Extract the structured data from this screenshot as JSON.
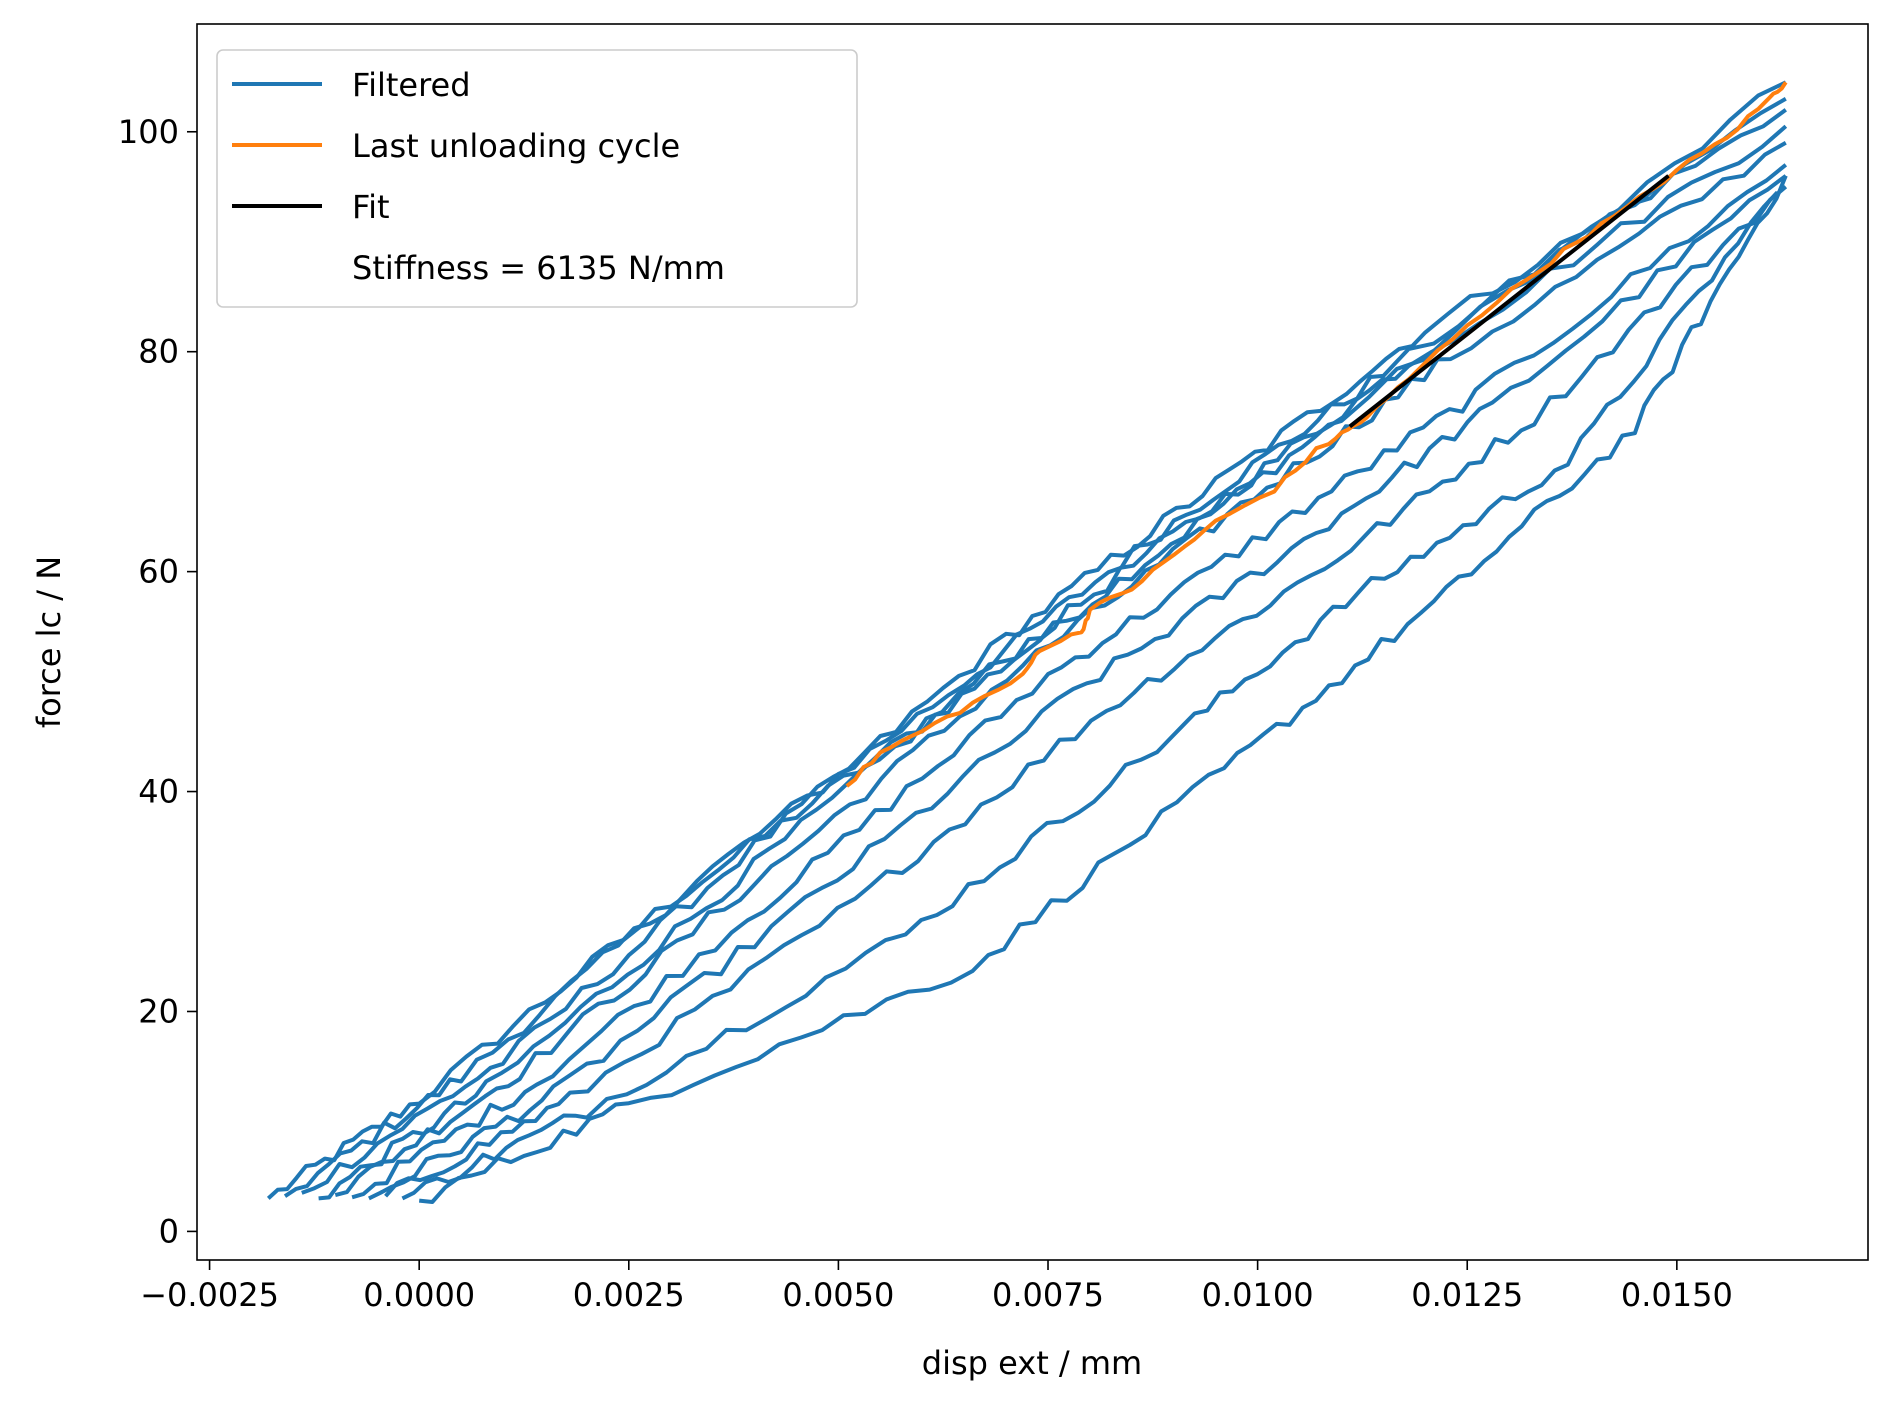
{
  "chart_data": {
    "type": "line",
    "xlabel": "disp ext / mm",
    "ylabel": "force lc / N",
    "xlim": [
      -0.00265,
      0.01728
    ],
    "ylim": [
      -2.6,
      109.8
    ],
    "x_ticks": [
      -0.0025,
      0.0,
      0.0025,
      0.005,
      0.0075,
      0.01,
      0.0125,
      0.015
    ],
    "x_tick_labels": [
      "−0.0025",
      "0.0000",
      "0.0025",
      "0.0050",
      "0.0075",
      "0.0100",
      "0.0125",
      "0.0150"
    ],
    "y_ticks": [
      0,
      20,
      40,
      60,
      80,
      100
    ],
    "y_tick_labels": [
      "0",
      "20",
      "40",
      "60",
      "80",
      "100"
    ],
    "grid": false,
    "legend_position": "upper-left",
    "legend": [
      {
        "label": "Filtered",
        "color": "#1f77b4"
      },
      {
        "label": "Last unloading cycle",
        "color": "#ff7f0e"
      },
      {
        "label": "Fit",
        "color": "#000000"
      },
      {
        "label": "Stiffness = 6135 N/mm",
        "color": null
      }
    ],
    "series": [
      {
        "name": "Filtered",
        "color": "#1f77b4",
        "curves": [
          [
            [
              -0.0018,
              3.0
            ],
            [
              0.0,
              12.0
            ],
            [
              0.003,
              30.0
            ],
            [
              0.006,
              46.0
            ],
            [
              0.0085,
              60.0
            ],
            [
              0.011,
              74.0
            ],
            [
              0.0163,
              104.5
            ]
          ],
          [
            [
              -0.0016,
              3.2
            ],
            [
              0.0005,
              14.0
            ],
            [
              0.0035,
              33.0
            ],
            [
              0.0065,
              50.0
            ],
            [
              0.009,
              64.5
            ],
            [
              0.0115,
              78.0
            ],
            [
              0.0163,
              103.0
            ]
          ],
          [
            [
              -0.0014,
              3.5
            ],
            [
              0.001,
              15.5
            ],
            [
              0.004,
              35.0
            ],
            [
              0.007,
              54.0
            ],
            [
              0.0095,
              68.0
            ],
            [
              0.012,
              82.0
            ],
            [
              0.0163,
              102.0
            ]
          ],
          [
            [
              -0.0012,
              3.0
            ],
            [
              0.0008,
              13.0
            ],
            [
              0.0038,
              32.0
            ],
            [
              0.0068,
              51.0
            ],
            [
              0.0093,
              65.0
            ],
            [
              0.0118,
              79.0
            ],
            [
              0.0163,
              100.5
            ]
          ],
          [
            [
              -0.001,
              3.3
            ],
            [
              0.0012,
              14.5
            ],
            [
              0.0042,
              33.0
            ],
            [
              0.0072,
              51.5
            ],
            [
              0.0098,
              66.0
            ],
            [
              0.0123,
              79.5
            ],
            [
              0.0163,
              99.0
            ]
          ],
          [
            [
              -0.0008,
              3.1
            ],
            [
              0.0014,
              13.5
            ],
            [
              0.0045,
              32.0
            ],
            [
              0.0075,
              50.5
            ],
            [
              0.0101,
              63.5
            ],
            [
              0.0126,
              76.0
            ],
            [
              0.0163,
              97.0
            ]
          ],
          [
            [
              -0.0006,
              3.0
            ],
            [
              0.0016,
              12.5
            ],
            [
              0.0048,
              31.0
            ],
            [
              0.0078,
              49.0
            ],
            [
              0.0104,
              62.0
            ],
            [
              0.0128,
              75.0
            ],
            [
              0.0163,
              96.0
            ]
          ],
          [
            [
              -0.0004,
              3.2
            ],
            [
              0.0018,
              12.0
            ],
            [
              0.0052,
              30.0
            ],
            [
              0.0082,
              47.5
            ],
            [
              0.0108,
              60.5
            ],
            [
              0.0133,
              74.0
            ],
            [
              0.0163,
              95.0
            ]
          ],
          [
            [
              -0.0002,
              3.0
            ],
            [
              0.002,
              11.0
            ],
            [
              0.0058,
              27.0
            ],
            [
              0.0088,
              44.0
            ],
            [
              0.0112,
              58.0
            ],
            [
              0.0137,
              70.0
            ],
            [
              0.0162,
              94.5
            ]
          ],
          [
            [
              0.0,
              2.8
            ],
            [
              0.0025,
              11.5
            ],
            [
              0.0066,
              24.0
            ],
            [
              0.0096,
              42.0
            ],
            [
              0.0121,
              57.0
            ],
            [
              0.0145,
              73.0
            ],
            [
              0.0163,
              96.0
            ]
          ]
        ]
      },
      {
        "name": "Last unloading cycle",
        "color": "#ff7f0e",
        "points": [
          [
            0.0051,
            40.5
          ],
          [
            0.0055,
            43.5
          ],
          [
            0.006,
            45.5
          ],
          [
            0.0066,
            48.0
          ],
          [
            0.0072,
            50.5
          ],
          [
            0.0074,
            53.0
          ],
          [
            0.0079,
            54.5
          ],
          [
            0.008,
            56.5
          ],
          [
            0.0085,
            58.5
          ],
          [
            0.009,
            61.5
          ],
          [
            0.0095,
            64.5
          ],
          [
            0.0102,
            67.5
          ],
          [
            0.0107,
            71.0
          ],
          [
            0.011,
            72.5
          ],
          [
            0.0113,
            74.0
          ],
          [
            0.0118,
            77.5
          ],
          [
            0.0125,
            82.5
          ],
          [
            0.0132,
            86.5
          ],
          [
            0.0138,
            90.0
          ],
          [
            0.0144,
            93.0
          ],
          [
            0.015,
            96.5
          ],
          [
            0.0156,
            99.5
          ],
          [
            0.0161,
            103.0
          ],
          [
            0.0163,
            104.5
          ]
        ]
      },
      {
        "name": "Fit",
        "color": "#000000",
        "points": [
          [
            0.0111,
            73.2
          ],
          [
            0.0149,
            96.0
          ]
        ]
      }
    ]
  }
}
